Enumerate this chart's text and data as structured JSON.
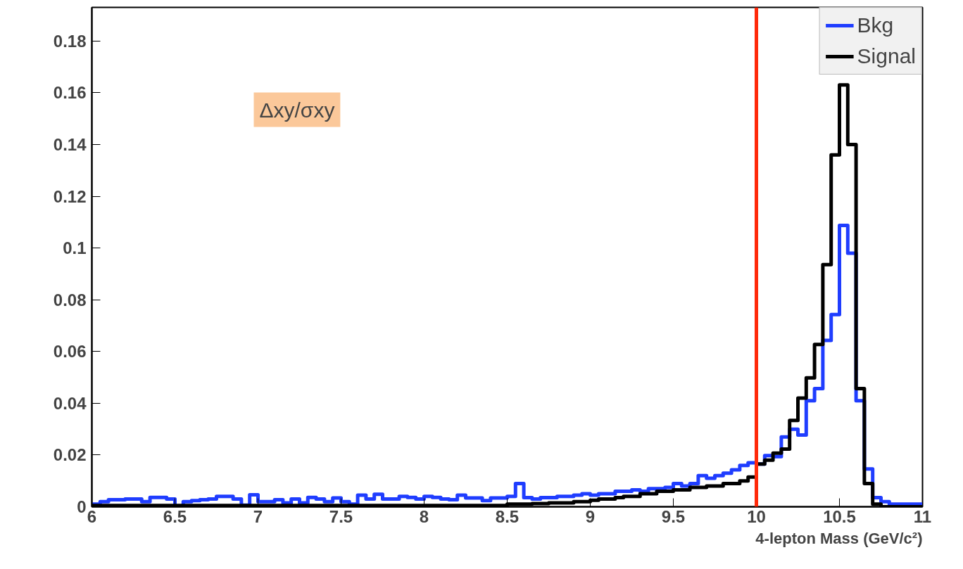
{
  "chart_data": {
    "type": "histogram",
    "xlabel": "4-lepton Mass (GeV/c²)",
    "annotations": [
      "Δxy/σxy"
    ],
    "bins": [
      6.0,
      6.05,
      6.1,
      6.15,
      6.2,
      6.25,
      6.3,
      6.35,
      6.4,
      6.45,
      6.5,
      6.55,
      6.6,
      6.65,
      6.7,
      6.75,
      6.8,
      6.85,
      6.9,
      6.95,
      7.0,
      7.05,
      7.1,
      7.15,
      7.2,
      7.25,
      7.3,
      7.35,
      7.4,
      7.45,
      7.5,
      7.55,
      7.6,
      7.65,
      7.7,
      7.75,
      7.8,
      7.85,
      7.9,
      7.95,
      8.0,
      8.05,
      8.1,
      8.15,
      8.2,
      8.25,
      8.3,
      8.35,
      8.4,
      8.45,
      8.5,
      8.55,
      8.6,
      8.65,
      8.7,
      8.75,
      8.8,
      8.85,
      8.9,
      8.95,
      9.0,
      9.05,
      9.1,
      9.15,
      9.2,
      9.25,
      9.3,
      9.35,
      9.4,
      9.45,
      9.5,
      9.55,
      9.6,
      9.65,
      9.7,
      9.75,
      9.8,
      9.85,
      9.9,
      9.95,
      10.0,
      10.05,
      10.1,
      10.15,
      10.2,
      10.25,
      10.3,
      10.35,
      10.4,
      10.45,
      10.5,
      10.55,
      10.6,
      10.65,
      10.7,
      10.75,
      10.8,
      10.85,
      10.9,
      10.95,
      11.0
    ],
    "series": [
      {
        "name": "Bkg",
        "color": "#1f3dff",
        "values": [
          0.001,
          0.002,
          0.0027,
          0.0027,
          0.003,
          0.003,
          0.002,
          0.0036,
          0.0036,
          0.003,
          0.0003,
          0.002,
          0.0024,
          0.0027,
          0.003,
          0.004,
          0.004,
          0.003,
          0.0006,
          0.0046,
          0.002,
          0.002,
          0.0027,
          0.0015,
          0.003,
          0.0015,
          0.0036,
          0.003,
          0.002,
          0.0034,
          0.002,
          0.001,
          0.0045,
          0.003,
          0.0048,
          0.003,
          0.003,
          0.004,
          0.0036,
          0.003,
          0.004,
          0.0036,
          0.003,
          0.0027,
          0.0045,
          0.0034,
          0.0034,
          0.0024,
          0.0034,
          0.0034,
          0.004,
          0.009,
          0.0035,
          0.003,
          0.0035,
          0.0035,
          0.004,
          0.004,
          0.0045,
          0.005,
          0.0045,
          0.005,
          0.005,
          0.006,
          0.006,
          0.0065,
          0.006,
          0.007,
          0.007,
          0.0075,
          0.009,
          0.008,
          0.009,
          0.012,
          0.011,
          0.012,
          0.013,
          0.0143,
          0.016,
          0.017,
          0.0165,
          0.0198,
          0.0194,
          0.027,
          0.03,
          0.0277,
          0.041,
          0.0457,
          0.0643,
          0.0743,
          0.1087,
          0.098,
          0.041,
          0.0146,
          0.0035,
          0.002,
          0.001,
          0.001,
          0.001,
          0.001
        ]
      },
      {
        "name": "Signal",
        "color": "#000000",
        "values": [
          0.0005,
          0.0005,
          0.0005,
          0.0005,
          0.0005,
          0.0005,
          0.0005,
          0.0005,
          0.0005,
          0.0005,
          0.0005,
          0.0005,
          0.0005,
          0.0005,
          0.0005,
          0.0005,
          0.0005,
          0.0005,
          0.0005,
          0.0005,
          0.0005,
          0.0005,
          0.0005,
          0.0005,
          0.0005,
          0.0005,
          0.0005,
          0.0005,
          0.0005,
          0.0005,
          0.0005,
          0.0005,
          0.0005,
          0.0005,
          0.0005,
          0.0005,
          0.0005,
          0.0005,
          0.0005,
          0.0005,
          0.0005,
          0.0005,
          0.0005,
          0.0005,
          0.0005,
          0.0005,
          0.0005,
          0.0005,
          0.0005,
          0.0005,
          0.001,
          0.001,
          0.001,
          0.0012,
          0.0012,
          0.0015,
          0.0015,
          0.0015,
          0.002,
          0.002,
          0.0025,
          0.003,
          0.003,
          0.0035,
          0.004,
          0.004,
          0.005,
          0.005,
          0.006,
          0.006,
          0.0065,
          0.0065,
          0.0075,
          0.0075,
          0.008,
          0.008,
          0.009,
          0.009,
          0.01,
          0.0115,
          0.0165,
          0.018,
          0.0207,
          0.0223,
          0.0334,
          0.042,
          0.0498,
          0.0627,
          0.0936,
          0.136,
          0.163,
          0.14,
          0.0457,
          0.009,
          0.001,
          0,
          0,
          0,
          0,
          0
        ]
      }
    ],
    "ref_lines": [
      {
        "axis": "x",
        "value": 10,
        "color": "#ff2a0a"
      }
    ],
    "xlim": [
      6,
      11
    ],
    "ylim": [
      0,
      0.193
    ],
    "xticks": [
      6,
      6.5,
      7,
      7.5,
      8,
      8.5,
      9,
      9.5,
      10,
      10.5,
      11
    ],
    "yticks": [
      0,
      0.02,
      0.04,
      0.06,
      0.08,
      0.1,
      0.12,
      0.14,
      0.16,
      0.18
    ],
    "legend": "top right",
    "grid": false
  }
}
